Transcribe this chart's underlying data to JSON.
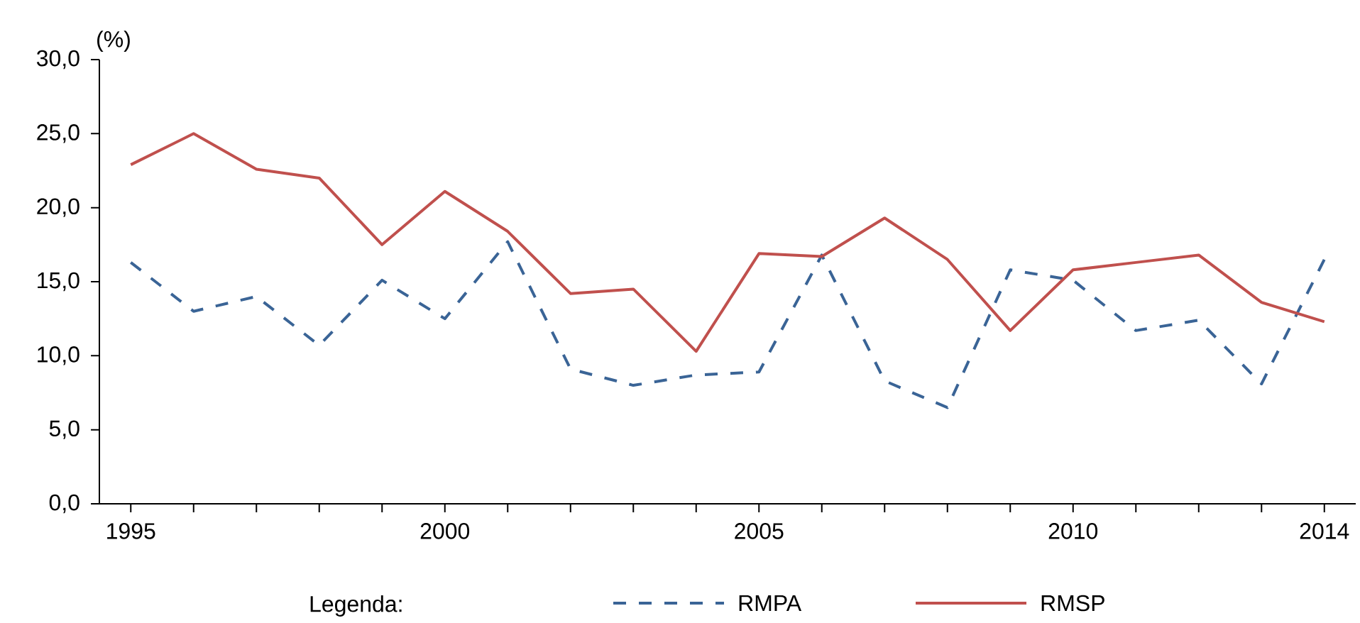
{
  "chart_data": {
    "type": "line",
    "ylabel": "(%)",
    "legend_title": "Legenda:",
    "x": [
      1995,
      1996,
      1997,
      1998,
      1999,
      2000,
      2001,
      2002,
      2003,
      2004,
      2005,
      2006,
      2007,
      2008,
      2009,
      2010,
      2011,
      2012,
      2013,
      2014
    ],
    "series": [
      {
        "name": "RMPA",
        "color": "#3a6496",
        "line_style": "dashed",
        "values": [
          16.3,
          13.0,
          14.0,
          10.7,
          15.1,
          12.5,
          17.7,
          9.1,
          8.0,
          8.7,
          8.9,
          16.8,
          8.3,
          6.5,
          15.8,
          15.1,
          11.7,
          12.4,
          8.1,
          16.5
        ]
      },
      {
        "name": "RMSP",
        "color": "#c0504d",
        "line_style": "solid",
        "values": [
          22.9,
          25.0,
          22.6,
          22.0,
          17.5,
          21.1,
          18.4,
          14.2,
          14.5,
          10.3,
          16.9,
          16.7,
          19.3,
          16.5,
          11.7,
          15.8,
          16.3,
          16.8,
          13.6,
          12.3
        ]
      }
    ],
    "xlim": [
      1994.5,
      2014.5
    ],
    "ylim": [
      0,
      30
    ],
    "xticks": [
      1995,
      {
        "value": 1996,
        "label": null
      },
      {
        "value": 1997,
        "label": null
      },
      {
        "value": 1998,
        "label": null
      },
      {
        "value": 1999,
        "label": null
      },
      2000,
      {
        "value": 2001,
        "label": null
      },
      {
        "value": 2002,
        "label": null
      },
      {
        "value": 2003,
        "label": null
      },
      {
        "value": 2004,
        "label": null
      },
      2005,
      {
        "value": 2006,
        "label": null
      },
      {
        "value": 2007,
        "label": null
      },
      {
        "value": 2008,
        "label": null
      },
      {
        "value": 2009,
        "label": null
      },
      2010,
      {
        "value": 2011,
        "label": null
      },
      {
        "value": 2012,
        "label": null
      },
      {
        "value": 2013,
        "label": null
      },
      2014
    ],
    "yticks": [
      {
        "value": 0,
        "label": "0,0"
      },
      {
        "value": 5,
        "label": "5,0"
      },
      {
        "value": 10,
        "label": "10,0"
      },
      {
        "value": 15,
        "label": "15,0"
      },
      {
        "value": 20,
        "label": "20,0"
      },
      {
        "value": 25,
        "label": "25,0"
      },
      {
        "value": 30,
        "label": "30,0"
      }
    ],
    "grid": false,
    "legend": "bottom",
    "marker": "none"
  }
}
